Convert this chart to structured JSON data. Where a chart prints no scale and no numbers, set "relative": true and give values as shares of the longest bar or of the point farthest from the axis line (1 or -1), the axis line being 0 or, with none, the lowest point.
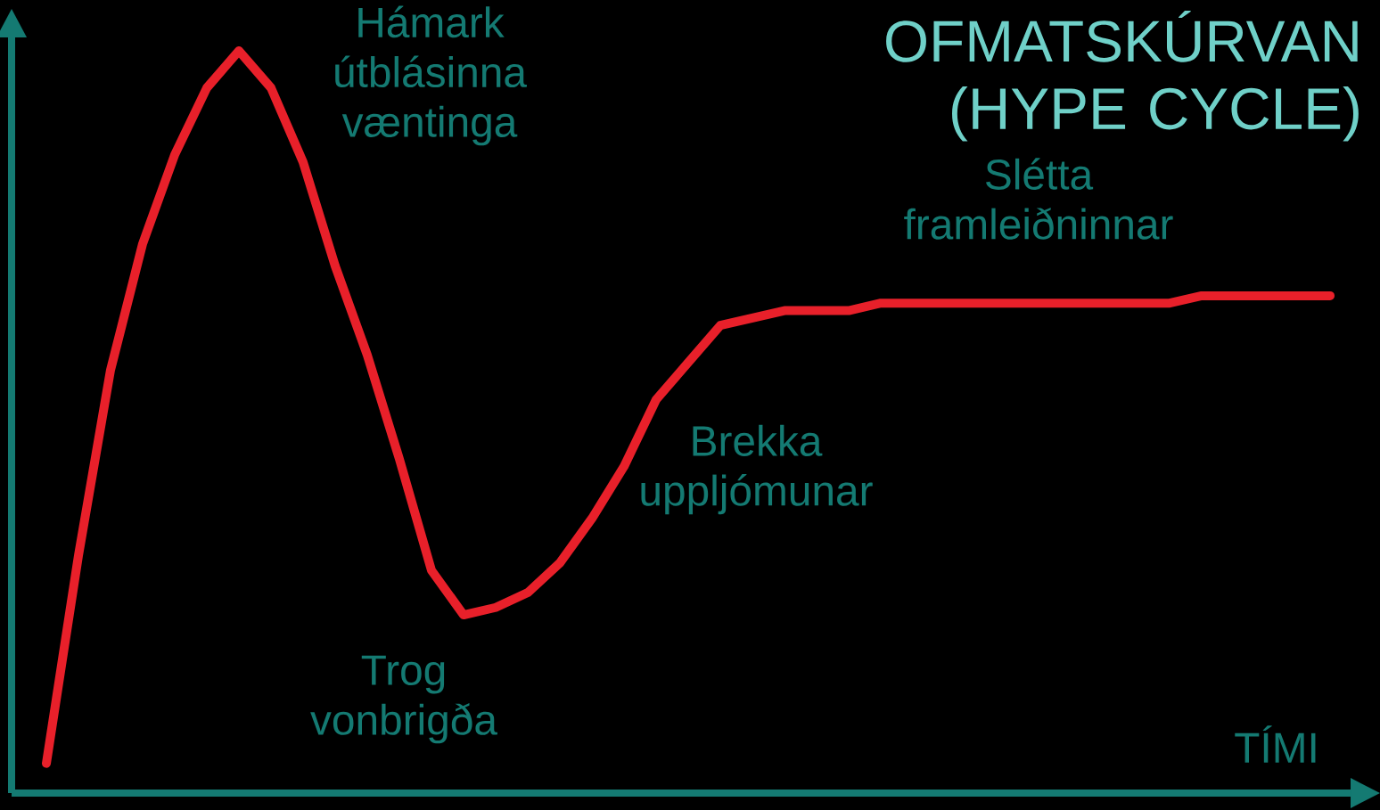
{
  "chart_data": {
    "type": "line",
    "relative": true,
    "title": "OFMATSKÚRVAN (HYPE CYCLE)",
    "xlabel": "TÍMI",
    "categories": [
      null,
      null,
      null,
      null,
      null,
      null,
      null,
      null,
      null,
      null,
      null,
      null,
      null,
      null,
      null,
      null,
      null,
      null,
      null,
      null,
      null,
      null,
      null,
      null,
      null,
      null,
      null,
      null,
      null,
      null,
      null,
      null,
      null,
      null,
      null,
      null,
      null,
      null,
      null,
      null,
      null
    ],
    "series": [
      {
        "color": "#e8202a",
        "values": [
          0.04,
          0.32,
          0.57,
          0.74,
          0.86,
          0.95,
          1,
          0.95,
          0.85,
          0.71,
          0.59,
          0.45,
          0.3,
          0.24,
          0.25,
          0.27,
          0.31,
          0.37,
          0.44,
          0.53,
          0.58,
          0.63,
          0.64,
          0.65,
          0.65,
          0.65,
          0.66,
          0.66,
          0.66,
          0.66,
          0.66,
          0.66,
          0.66,
          0.66,
          0.66,
          0.66,
          0.67,
          0.67,
          0.67,
          0.67,
          0.67
        ]
      }
    ],
    "annotations": [
      "Hámark útblásinna væntinga",
      "Trog vonbrigða",
      "Brekka uppljómunar",
      "Slétta framleiðninnar"
    ]
  }
}
